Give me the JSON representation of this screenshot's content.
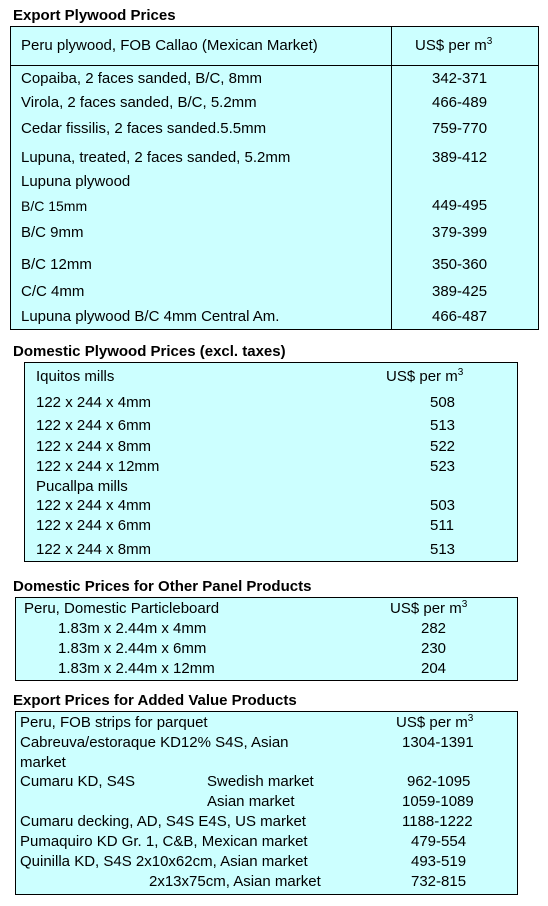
{
  "section1": {
    "title": "Export Plywood Prices",
    "header_label": "Peru plywood, FOB Callao (Mexican Market)",
    "header_unit": "US$ per m",
    "header_sup": "3",
    "rows": [
      {
        "label": "Copaiba, 2 faces sanded, B/C, 8mm",
        "value": "342-371"
      },
      {
        "label": "Virola, 2 faces sanded, B/C, 5.2mm",
        "value": "466-489"
      },
      {
        "label": "Cedar fissilis, 2 faces sanded.5.5mm",
        "value": "759-770"
      },
      {
        "label": "Lupuna, treated, 2 faces sanded, 5.2mm",
        "value": "389-412"
      },
      {
        "label": "Lupuna plywood",
        "value": ""
      },
      {
        "label": "B/C 15mm",
        "value": "449-495"
      },
      {
        "label": "B/C 9mm",
        "value": "379-399"
      },
      {
        "label": "B/C 12mm",
        "value": "350-360"
      },
      {
        "label": "C/C 4mm",
        "value": "389-425"
      },
      {
        "label": "Lupuna plywood B/C 4mm Central Am.",
        "value": "466-487"
      }
    ]
  },
  "section2": {
    "title": "Domestic Plywood Prices (excl. taxes)",
    "header_label": "Iquitos mills",
    "header_unit": "US$ per m",
    "header_sup": "3",
    "rows": [
      {
        "label": "122 x 244 x 4mm",
        "value": "508"
      },
      {
        "label": "122 x 244 x 6mm",
        "value": "513"
      },
      {
        "label": "122 x 244 x 8mm",
        "value": "522"
      },
      {
        "label": "122 x 244 x 12mm",
        "value": "523"
      },
      {
        "label": "Pucallpa mills",
        "value": ""
      },
      {
        "label": "122 x 244 x 4mm",
        "value": "503"
      },
      {
        "label": "122 x 244 x 6mm",
        "value": "511"
      },
      {
        "label": "122 x 244 x 8mm",
        "value": "513"
      }
    ]
  },
  "section3": {
    "title": "Domestic Prices for Other Panel Products",
    "header_label": "Peru, Domestic Particleboard",
    "header_unit": "US$ per m",
    "header_sup": "3",
    "rows": [
      {
        "label": "1.83m x 2.44m x 4mm",
        "value": "282"
      },
      {
        "label": "1.83m x 2.44m x 6mm",
        "value": "230"
      },
      {
        "label": "1.83m x 2.44m x 12mm",
        "value": "204"
      }
    ]
  },
  "section4": {
    "title": "Export Prices for Added Value Products",
    "header_label": "Peru, FOB strips for parquet",
    "header_unit": "US$ per m",
    "header_sup": "3",
    "rows": [
      {
        "label": "Cabreuva/estoraque KD12% S4S, Asian",
        "label2": "market",
        "mid": "",
        "value": "1304-1391"
      },
      {
        "label": "Cumaru KD, S4S",
        "label2": "",
        "mid": "Swedish market",
        "value": "962-1095"
      },
      {
        "label": "",
        "label2": "",
        "mid": "Asian market",
        "value": "1059-1089"
      },
      {
        "label": "Cumaru decking, AD, S4S E4S,  US market",
        "label2": "",
        "mid": "",
        "value": "1188-1222"
      },
      {
        "label": "Pumaquiro KD Gr. 1, C&B,  Mexican market",
        "label2": "",
        "mid": "",
        "value": "479-554"
      },
      {
        "label": "Quinilla KD, S4S 2x10x62cm,  Asian market",
        "label2": "",
        "mid": "",
        "value": "493-519"
      },
      {
        "label": "",
        "label2": "",
        "mid": "2x13x75cm, Asian market",
        "value": "732-815"
      }
    ]
  }
}
